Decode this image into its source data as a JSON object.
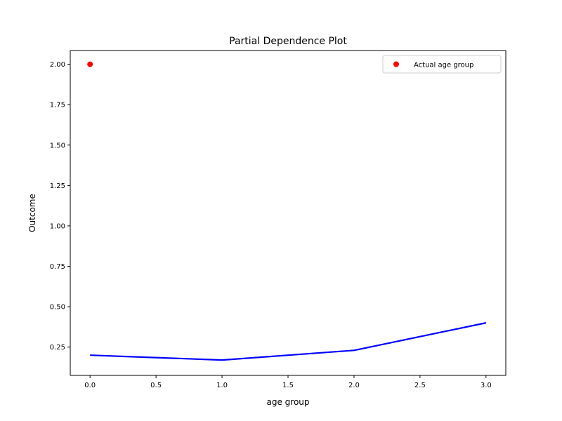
{
  "chart_data": {
    "type": "line",
    "title": "Partial Dependence Plot",
    "xlabel": "age group",
    "ylabel": "Outcome",
    "xlim": [
      -0.15,
      3.15
    ],
    "ylim": [
      0.075,
      2.085
    ],
    "xticks": [
      0.0,
      0.5,
      1.0,
      1.5,
      2.0,
      2.5,
      3.0
    ],
    "xtick_labels": [
      "0.0",
      "0.5",
      "1.0",
      "1.5",
      "2.0",
      "2.5",
      "3.0"
    ],
    "yticks": [
      0.25,
      0.5,
      0.75,
      1.0,
      1.25,
      1.5,
      1.75,
      2.0
    ],
    "ytick_labels": [
      "0.25",
      "0.50",
      "0.75",
      "1.00",
      "1.25",
      "1.50",
      "1.75",
      "2.00"
    ],
    "grid": false,
    "legend_position": "top-right",
    "series": [
      {
        "kind": "line",
        "color": "#0000ff",
        "x": [
          0,
          1,
          2,
          3
        ],
        "y": [
          0.2,
          0.17,
          0.23,
          0.4
        ]
      },
      {
        "kind": "scatter",
        "name": "Actual age group",
        "color": "#ff0000",
        "x": [
          0
        ],
        "y": [
          2.0
        ]
      }
    ]
  }
}
